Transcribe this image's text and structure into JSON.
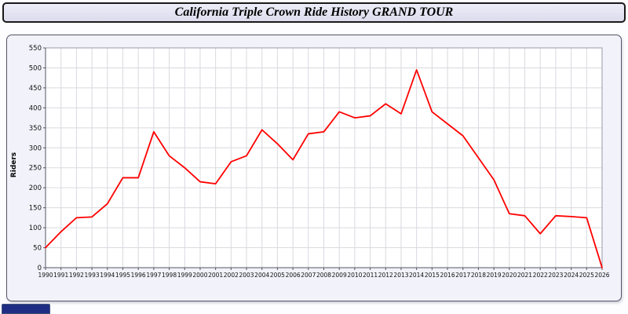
{
  "header": {
    "title": "California Triple Crown Ride History GRAND TOUR"
  },
  "chart_data": {
    "type": "line",
    "title": "California Triple Crown Ride History GRAND TOUR",
    "xlabel": "",
    "ylabel": "Riders",
    "ylim": [
      0,
      550
    ],
    "ytick_step": 50,
    "grid": true,
    "legend": "none",
    "line_color": "#ff0000",
    "x": [
      1990,
      1991,
      1992,
      1993,
      1994,
      1995,
      1996,
      1997,
      1998,
      1999,
      2000,
      2001,
      2002,
      2003,
      2004,
      2005,
      2006,
      2007,
      2008,
      2009,
      2010,
      2011,
      2012,
      2013,
      2014,
      2015,
      2016,
      2017,
      2018,
      2019,
      2020,
      2021,
      2022,
      2023,
      2024,
      2025,
      2026
    ],
    "values": [
      50,
      90,
      125,
      127,
      160,
      225,
      225,
      340,
      280,
      250,
      215,
      210,
      265,
      280,
      345,
      310,
      270,
      335,
      340,
      390,
      375,
      380,
      410,
      385,
      495,
      390,
      360,
      330,
      275,
      220,
      135,
      130,
      85,
      130,
      128,
      125,
      0
    ]
  },
  "colors": {
    "titlebar_bg": "#e4e4f2",
    "panel_bg": "#f2f2fa",
    "plot_bg": "#ffffff",
    "gridline": "#d9d9e0",
    "axis": "#555566",
    "line": "#ff0000",
    "taskbar_fragment": "#1e2d83"
  }
}
